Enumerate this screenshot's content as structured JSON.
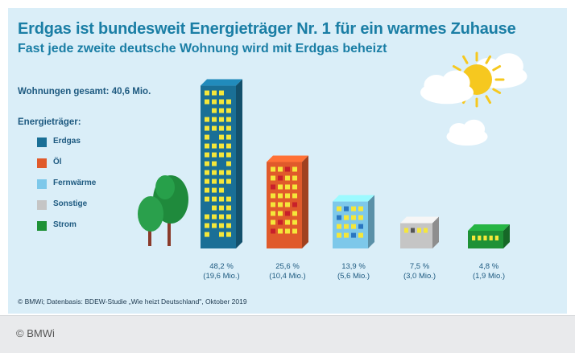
{
  "title": "Erdgas ist bundesweit Energieträger Nr. 1 für ein warmes Zuhause",
  "subtitle": "Fast jede zweite deutsche Wohnung wird mit Erdgas beheizt",
  "total": "Wohnungen gesamt: 40,6 Mio.",
  "legend_title": "Energieträger:",
  "source": "© BMWi; Datenbasis: BDEW-Studie „Wie heizt Deutschland\", Oktober 2019",
  "footer": "© BMWi",
  "chart_data": {
    "type": "bar",
    "categories": [
      "Erdgas",
      "Öl",
      "Fernwärme",
      "Sonstige",
      "Strom"
    ],
    "values": [
      48.2,
      25.6,
      13.9,
      7.5,
      4.8
    ],
    "absolute_mio": [
      19.6,
      10.4,
      5.6,
      3.0,
      1.9
    ],
    "labels_pct": [
      "48,2 %",
      "25,6 %",
      "13,9 %",
      "7,5 %",
      "4,8 %"
    ],
    "labels_abs": [
      "(19,6 Mio.)",
      "(10,4 Mio.)",
      "(5,6 Mio.)",
      "(3,0 Mio.)",
      "(1,9 Mio.)"
    ],
    "colors": [
      "#1a6f96",
      "#e05a2b",
      "#7dc8ea",
      "#c5c5c5",
      "#1e9136"
    ],
    "ylim": [
      0,
      50
    ]
  }
}
